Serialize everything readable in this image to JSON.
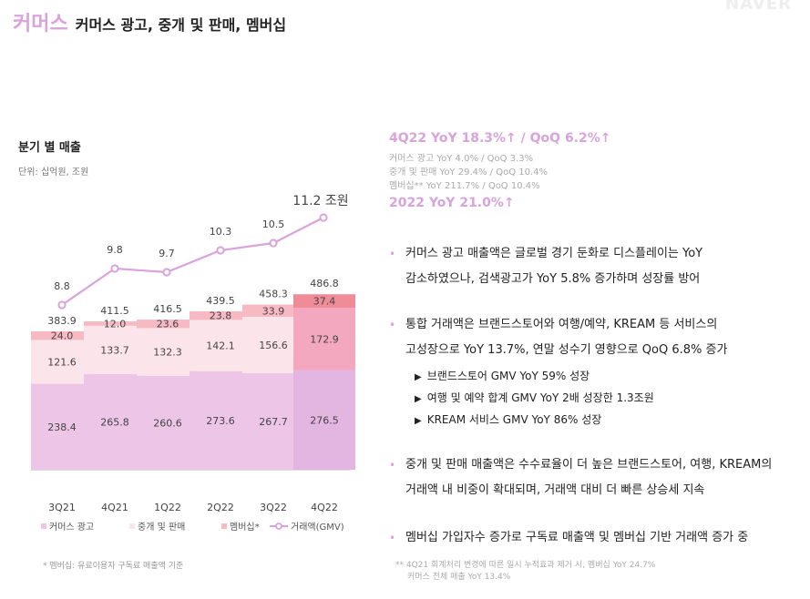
{
  "header": {
    "highlight": "커머스",
    "subtitle": "커머스 광고, 중개 및 판매, 멤버십"
  },
  "left": {
    "chart_title": "분기 별 매출",
    "unit": "단위: 십억원, 조원",
    "footnote": "* 멤버십: 유료이용자 구독료 매출액 기준"
  },
  "right": {
    "headline": "4Q22 YoY 18.3%↑ / QoQ 6.2%↑",
    "sub1": "커머스 광고 YoY 4.0% / QoQ 3.3%",
    "sub2": "중개 및 판매 YoY 29.4% / QoQ 10.4%",
    "sub3": "멤버십** YoY 211.7% / QoQ 10.4%",
    "year": "2022 YoY 21.0%↑",
    "bullets": [
      {
        "line1": "커머스 광고 매출액은 글로벌 경기 둔화로 디스플레이는 YoY",
        "line2": "감소하였으나, 검색광고가 YoY 5.8% 증가하며 성장률 방어"
      },
      {
        "line1": "통합 거래액은 브랜드스토어와 여행/예약, KREAM 등 서비스의",
        "line2": "고성장으로 YoY 13.7%, 연말 성수기 영향으로 QoQ 6.8% 증가"
      },
      {
        "line1": "중개 및 판매 매출액은 수수료율이 더 높은 브랜드스토어, 여행, KREAM의",
        "line2": "거래액 내 비중이 확대되며, 거래액 대비 더 빠른 상승세 지속"
      },
      {
        "line1": "멤버십 가입자수 증가로 구독료 매출액 및 멤버십 기반 거래액 증가 중",
        "line2": ""
      }
    ],
    "subitems": [
      "브랜드스토어 GMV YoY 59% 성장",
      "여행 및 예약 합계 GMV YoY 2배 성장한 1.3조원",
      "KREAM 서비스 GMV YoY 86% 성장"
    ],
    "footnote1": "** 4Q21 회계처리 변경에 따른 일시 누적효과 제거 시, 멤버십 YoY 24.7%",
    "footnote2": "커머스 전체 매출 YoY 13.4%"
  },
  "colors": {
    "ad": "#ecc5e7",
    "brokerage": "#fbe4ea",
    "membership": "#f7b9c2",
    "ad_4q": "#e3b5e1",
    "brokerage_4q": "#f3a8c0",
    "membership_4q": "#ef8c97",
    "gmv": "#d9a3dc",
    "accent": "#d9a3dc"
  },
  "chart_data": {
    "type": "bar",
    "stacked": true,
    "categories": [
      "3Q21",
      "4Q21",
      "1Q22",
      "2Q22",
      "3Q22",
      "4Q22"
    ],
    "series": [
      {
        "name": "커머스 광고",
        "values": [
          238.4,
          265.8,
          260.6,
          273.6,
          267.7,
          276.5
        ]
      },
      {
        "name": "중개 및 판매",
        "values": [
          121.6,
          133.7,
          132.3,
          142.1,
          156.6,
          172.9
        ]
      },
      {
        "name": "멤버십*",
        "values": [
          24.0,
          12.0,
          23.6,
          23.8,
          33.9,
          37.4
        ]
      }
    ],
    "totals": [
      383.9,
      411.5,
      416.5,
      439.5,
      458.3,
      486.8
    ],
    "line": {
      "name": "거래액(GMV)",
      "values": [
        8.8,
        9.8,
        9.7,
        10.3,
        10.5,
        11.2
      ],
      "last_unit": "조원"
    },
    "legend": "bottom"
  }
}
